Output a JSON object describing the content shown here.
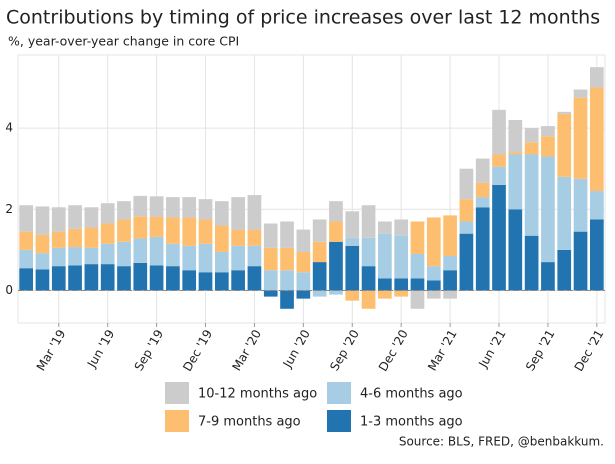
{
  "chart_data": {
    "type": "stacked_bar",
    "title": "Contributions by timing of price increases over last 12 months",
    "subtitle": "%, year-over-year change in core CPI",
    "source": "Source: BLS, FRED, @benbakkum.",
    "categories": [
      null,
      null,
      "Mar '19",
      null,
      null,
      "Jun '19",
      null,
      null,
      "Sep '19",
      null,
      null,
      "Dec '19",
      null,
      null,
      "Mar '20",
      null,
      null,
      "Jun '20",
      null,
      null,
      "Sep '20",
      null,
      null,
      "Dec '20",
      null,
      null,
      "Mar '21",
      null,
      null,
      "Jun '21",
      null,
      null,
      "Sep '21",
      null,
      null,
      "Dec '21"
    ],
    "series": [
      {
        "name": "1-3 months ago",
        "color": "#2274b0",
        "values": [
          0.55,
          0.52,
          0.6,
          0.62,
          0.65,
          0.65,
          0.6,
          0.68,
          0.62,
          0.6,
          0.5,
          0.45,
          0.45,
          0.5,
          0.6,
          -0.15,
          -0.45,
          -0.2,
          0.7,
          1.2,
          1.1,
          0.6,
          0.3,
          0.3,
          0.3,
          0.25,
          0.5,
          1.4,
          2.05,
          2.6,
          2.0,
          1.35,
          0.7,
          1.0,
          1.45,
          1.75
        ]
      },
      {
        "name": "4-6 months ago",
        "color": "#a6cde3",
        "values": [
          0.45,
          0.4,
          0.45,
          0.45,
          0.4,
          0.5,
          0.6,
          0.6,
          0.7,
          0.55,
          0.6,
          0.7,
          0.5,
          0.6,
          0.5,
          0.5,
          0.5,
          0.45,
          -0.15,
          -0.1,
          0.2,
          0.7,
          1.1,
          1.05,
          0.6,
          0.35,
          0.35,
          0.3,
          0.25,
          0.45,
          1.35,
          2.0,
          2.6,
          1.8,
          1.3,
          0.7
        ]
      },
      {
        "name": "7-9 months ago",
        "color": "#fdbf6f",
        "values": [
          0.45,
          0.45,
          0.4,
          0.45,
          0.5,
          0.5,
          0.55,
          0.55,
          0.5,
          0.65,
          0.7,
          0.6,
          0.65,
          0.4,
          0.4,
          0.55,
          0.55,
          0.5,
          0.5,
          0.5,
          -0.25,
          -0.45,
          -0.2,
          -0.15,
          0.8,
          1.2,
          1.0,
          0.55,
          0.35,
          0.3,
          0.05,
          0.3,
          0.5,
          1.55,
          2.0,
          2.55
        ]
      },
      {
        "name": "10-12 months ago",
        "color": "#cccccc",
        "values": [
          0.65,
          0.7,
          0.6,
          0.58,
          0.5,
          0.5,
          0.45,
          0.5,
          0.5,
          0.5,
          0.5,
          0.5,
          0.6,
          0.8,
          0.85,
          0.6,
          0.65,
          0.55,
          0.55,
          0.5,
          0.65,
          0.8,
          0.3,
          0.4,
          -0.45,
          -0.2,
          -0.2,
          0.75,
          0.6,
          1.1,
          0.8,
          0.35,
          0.25,
          0.05,
          0.2,
          0.5
        ]
      }
    ],
    "legend_order": [
      3,
      1,
      2,
      0
    ],
    "ylim": [
      -0.8,
      5.8
    ],
    "yticks": [
      0,
      2,
      4
    ],
    "grid": true
  }
}
